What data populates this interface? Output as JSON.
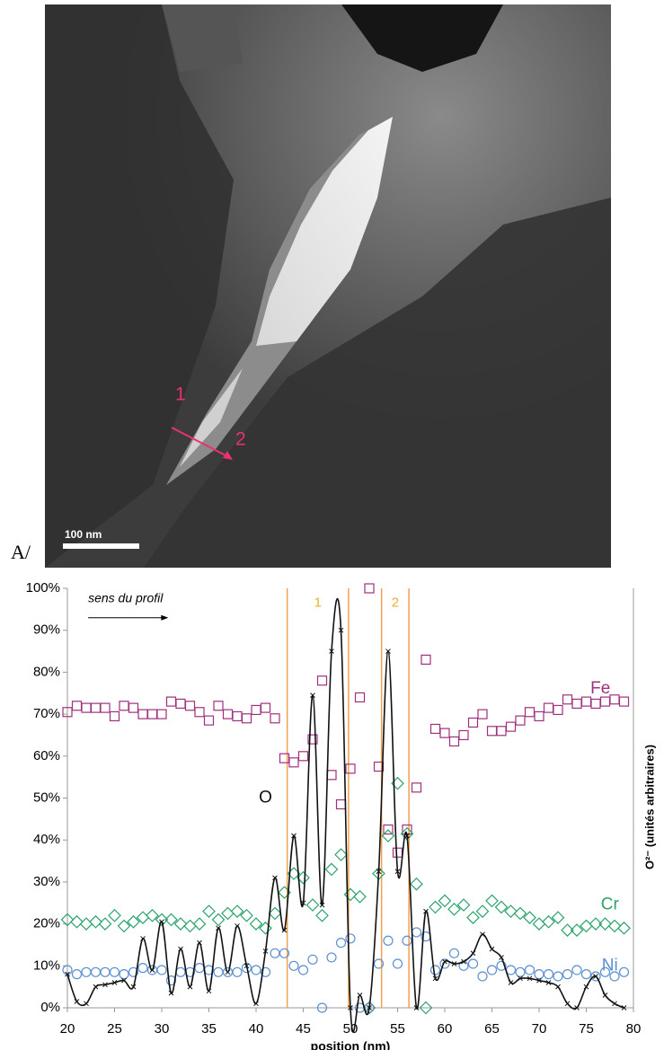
{
  "image": {
    "panel": "A/",
    "marker_start": "1",
    "marker_end": "2",
    "scale_bar": "100 nm"
  },
  "chart_data": {
    "type": "scatter",
    "xlabel": "position (nm)",
    "y2label": "O²⁻ (unités arbitraires)",
    "annotation": "sens du profil",
    "xlim": [
      20,
      80
    ],
    "xticks": [
      20,
      25,
      30,
      35,
      40,
      45,
      50,
      55,
      60,
      65,
      70,
      75,
      80
    ],
    "ylim": [
      0,
      100
    ],
    "yticks": [
      {
        "value": 0,
        "label": "0%"
      },
      {
        "value": 10,
        "label": "10%"
      },
      {
        "value": 20,
        "label": "20%"
      },
      {
        "value": 30,
        "label": "30%"
      },
      {
        "value": 40,
        "label": "40%"
      },
      {
        "value": 50,
        "label": "50%"
      },
      {
        "value": 60,
        "label": "60%"
      },
      {
        "value": 70,
        "label": "70%"
      },
      {
        "value": 80,
        "label": "80%"
      },
      {
        "value": 90,
        "label": "90%"
      },
      {
        "value": 100,
        "label": "100%"
      }
    ],
    "grid": false,
    "regions": [
      {
        "label": "1",
        "x": [
          43.3,
          49.8
        ]
      },
      {
        "label": "2",
        "x": [
          53.3,
          56.2
        ]
      }
    ],
    "region_color": "#f0a050",
    "x": [
      20,
      21,
      22,
      23,
      24,
      25,
      26,
      27,
      28,
      29,
      30,
      31,
      32,
      33,
      34,
      35,
      36,
      37,
      38,
      39,
      40,
      41,
      42,
      43,
      44,
      45,
      46,
      47,
      48,
      49,
      50,
      51,
      52,
      53,
      54,
      55,
      56,
      57,
      58,
      59,
      60,
      61,
      62,
      63,
      64,
      65,
      66,
      67,
      68,
      69,
      70,
      71,
      72,
      73,
      74,
      75,
      76,
      77,
      78,
      79
    ],
    "series": [
      {
        "name": "Fe",
        "color": "#a0307c",
        "marker": "square",
        "values": [
          70.5,
          72,
          71.5,
          71.5,
          71.5,
          69.5,
          72,
          71.5,
          70,
          70,
          70,
          73,
          72.5,
          72,
          70.5,
          68.5,
          72,
          70,
          69.5,
          69,
          71,
          71.5,
          69,
          59.5,
          58.5,
          60,
          64,
          78,
          55.5,
          48.5,
          57,
          74,
          100,
          57.5,
          42.5,
          37,
          42.5,
          52.5,
          83,
          66.5,
          65.5,
          63.5,
          65,
          68,
          70,
          66,
          66,
          67,
          68.5,
          70.5,
          69.5,
          71.5,
          71,
          73.5,
          72.5,
          73,
          72.5,
          73,
          73.5,
          73
        ]
      },
      {
        "name": "Cr",
        "color": "#2ca36b",
        "marker": "diamond",
        "values": [
          21,
          20.5,
          20,
          20.5,
          20,
          22,
          19.5,
          20.5,
          21.5,
          22,
          21,
          21,
          20,
          19.5,
          20,
          23,
          21,
          22.5,
          23,
          22,
          20,
          19,
          22.5,
          27.5,
          32,
          31,
          24.5,
          22,
          33,
          36.5,
          27,
          26.5,
          0,
          32,
          41,
          53.5,
          41.5,
          29.5,
          0,
          24,
          25.5,
          23.5,
          24.5,
          21.5,
          23,
          25.5,
          24,
          23,
          22.5,
          21.5,
          20,
          20.5,
          21.5,
          18.5,
          18.5,
          19.5,
          20,
          20,
          19.5,
          19
        ]
      },
      {
        "name": "Ni",
        "color": "#5b8fd1",
        "marker": "circle",
        "values": [
          9,
          8,
          8.5,
          8.5,
          8.5,
          8.5,
          8,
          8.5,
          9.5,
          9,
          9,
          6.5,
          8.5,
          8.5,
          9.5,
          9,
          8.5,
          8.5,
          8.5,
          9.5,
          9,
          8.5,
          13,
          13,
          10,
          9,
          11.5,
          0,
          12,
          15.5,
          16.5,
          0,
          0,
          10.5,
          16,
          10.5,
          16,
          18,
          17,
          9,
          10.5,
          13,
          10,
          10.5,
          7.5,
          9,
          10,
          9,
          8.5,
          9,
          8,
          8,
          7.5,
          8,
          9,
          8,
          7.5,
          8.5,
          7.5,
          8.5
        ]
      },
      {
        "name": "O",
        "color": "#111111",
        "marker": "cross",
        "line": true,
        "values": [
          8,
          1.5,
          1,
          5,
          5.5,
          6,
          6.5,
          5,
          16.5,
          9,
          20.5,
          3.5,
          14,
          5,
          15.5,
          4,
          19,
          8.5,
          19.5,
          10,
          1,
          13.5,
          31,
          18.5,
          41,
          25,
          74.5,
          24.5,
          85,
          90,
          0,
          3,
          0,
          32.5,
          85,
          32.5,
          41,
          0,
          23,
          7,
          11,
          10.5,
          11,
          13,
          17.5,
          14,
          12,
          6,
          7,
          7,
          6.5,
          6,
          5,
          1,
          0,
          5,
          7.5,
          3,
          1,
          0
        ]
      }
    ]
  }
}
